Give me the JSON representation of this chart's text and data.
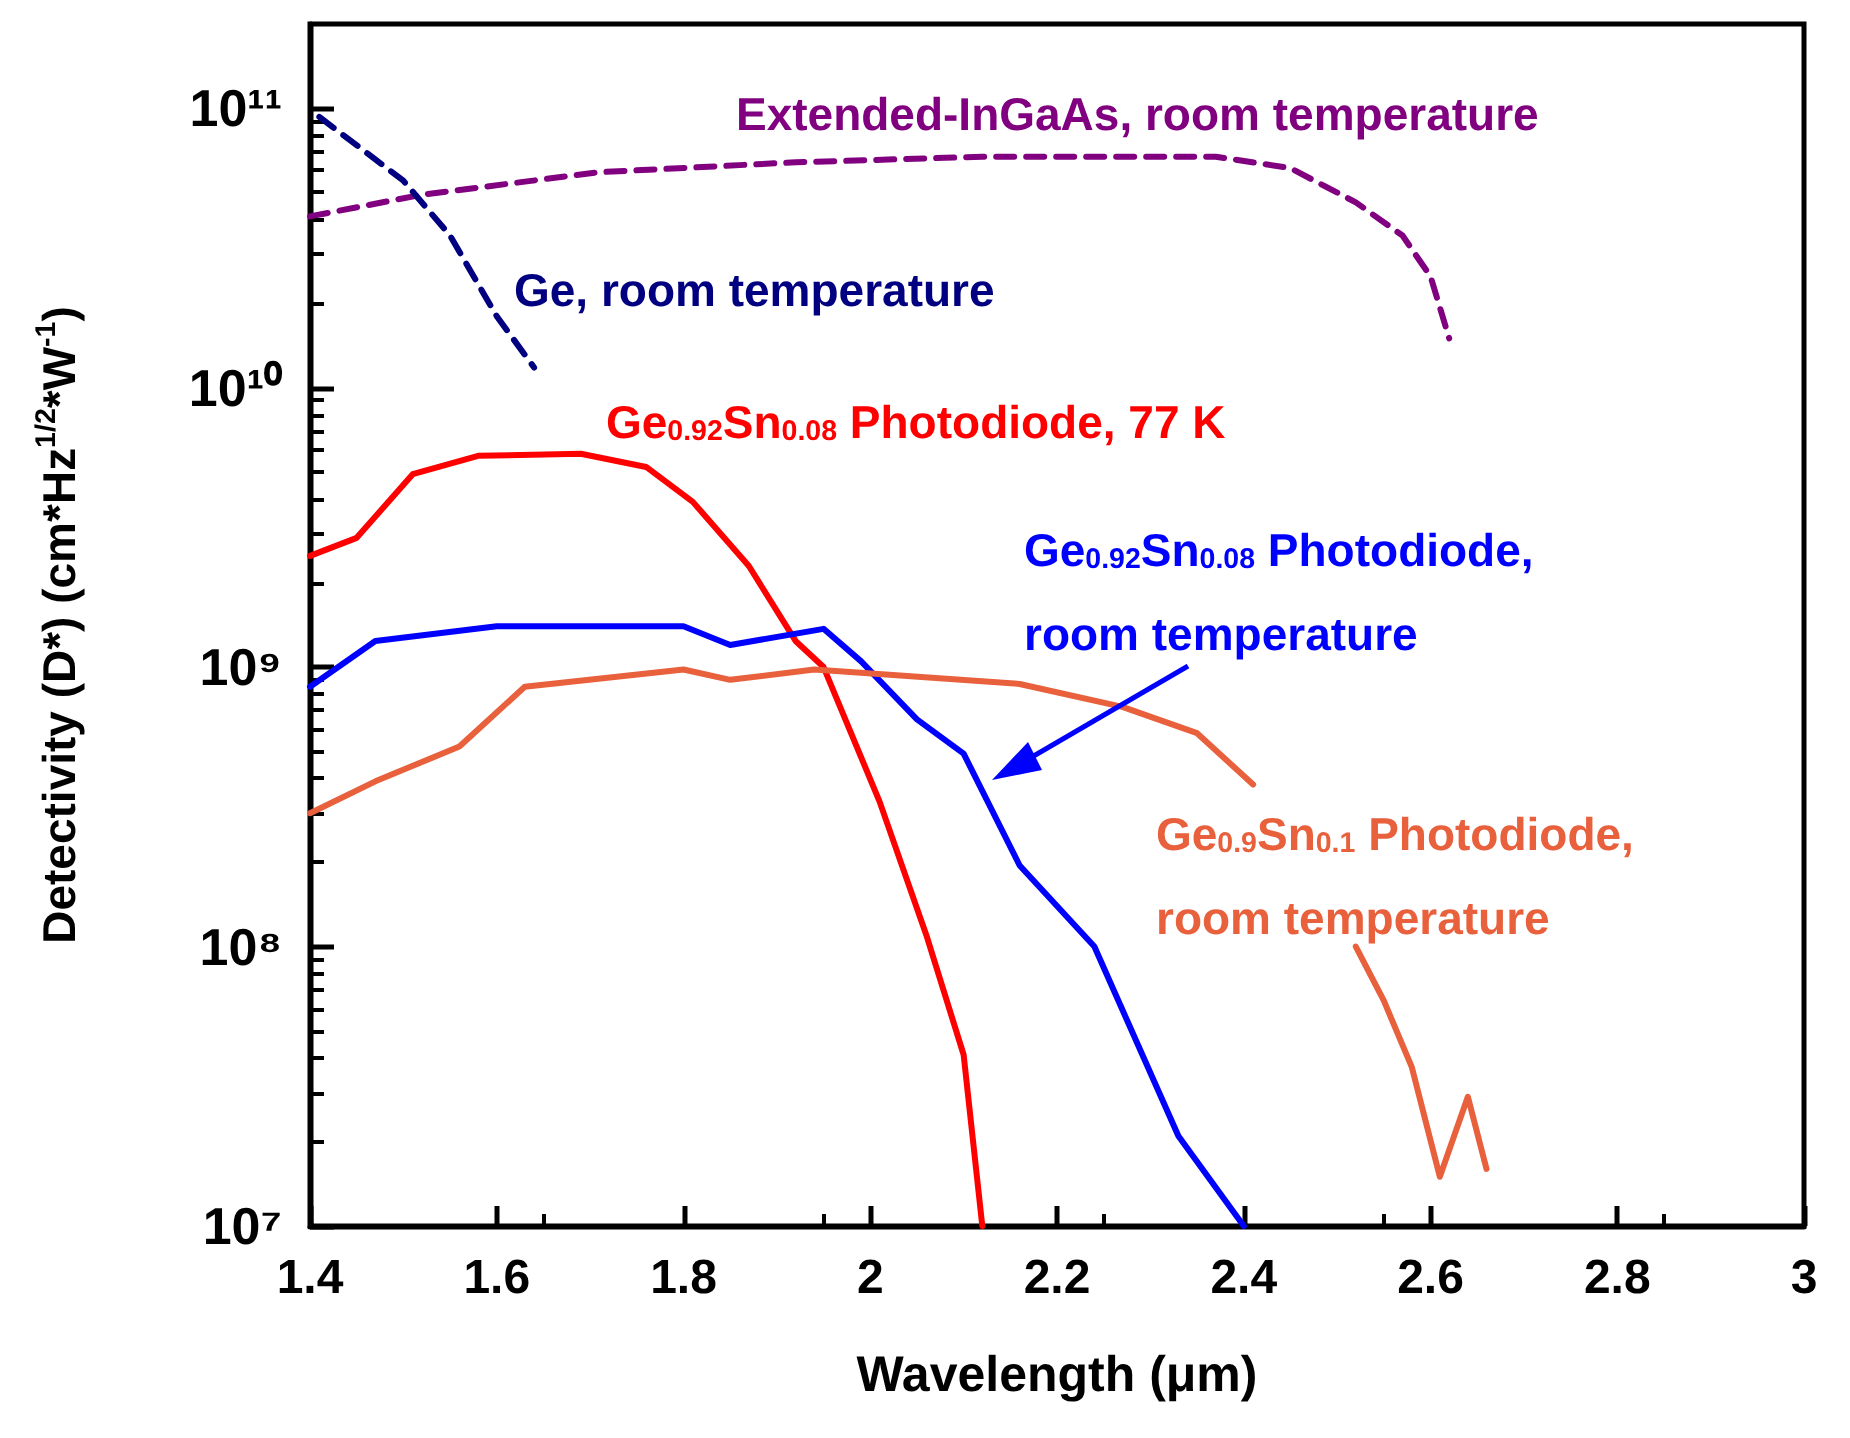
{
  "chart_data": {
    "type": "line",
    "xlabel": "Wavelength (μm)",
    "ylabel": "Detectivity (D*) (cm*Hz$^{1/2}$*W$^{-1}$)",
    "log": "y",
    "xlim": [
      1.4,
      3.0
    ],
    "xticks": [
      1.4,
      1.6,
      1.8,
      2.0,
      2.2,
      2.4,
      2.6,
      2.8,
      3.0
    ],
    "ylim": [
      10000000.0,
      200000000000.0
    ],
    "yticks": [
      {
        "value": 10000000.0,
        "label": "10⁷"
      },
      {
        "value": 100000000.0,
        "label": "10⁸"
      },
      {
        "value": 1000000000.0,
        "label": "10⁹"
      },
      {
        "value": 10000000000.0,
        "label": "10¹⁰"
      },
      {
        "value": 100000000000.0,
        "label": "10¹¹"
      }
    ],
    "series": [
      {
        "name": "Extended-InGaAs, room temperature",
        "color": "#800080",
        "line_style": "dashed",
        "x": [
          1.4,
          1.52,
          1.71,
          1.92,
          2.12,
          2.37,
          2.45,
          2.52,
          2.57,
          2.6,
          2.62
        ],
        "values": [
          41000000000.0,
          49000000000.0,
          59000000000.0,
          64000000000.0,
          67000000000.0,
          67000000000.0,
          61000000000.0,
          46000000000.0,
          35000000000.0,
          25000000000.0,
          15000000000.0
        ]
      },
      {
        "name": "Ge, room temperature",
        "color": "#000080",
        "line_style": "dashed",
        "x": [
          1.41,
          1.5,
          1.55,
          1.6,
          1.64
        ],
        "values": [
          93000000000.0,
          55000000000.0,
          35000000000.0,
          18000000000.0,
          11800000000.0
        ]
      },
      {
        "name": "Ge$_{0.92}$Sn$_{0.08}$ Photodiode, 77 K",
        "color": "#ff0000",
        "line_style": "solid",
        "x": [
          1.4,
          1.45,
          1.51,
          1.58,
          1.69,
          1.76,
          1.81,
          1.87,
          1.92,
          1.95,
          2.01,
          2.06,
          2.1,
          2.12
        ],
        "values": [
          2500000000.0,
          2900000000.0,
          4900000000.0,
          5700000000.0,
          5800000000.0,
          5200000000.0,
          3900000000.0,
          2300000000.0,
          1240000000.0,
          1000000000.0,
          330000000.0,
          110000000.0,
          41000000.0,
          10000000.0
        ]
      },
      {
        "name": "Ge$_{0.92}$Sn$_{0.08}$ Photodiode,\nroom temperature",
        "color": "#0000ff",
        "line_style": "solid",
        "x": [
          1.4,
          1.47,
          1.6,
          1.8,
          1.85,
          1.95,
          1.99,
          2.05,
          2.1,
          2.16,
          2.24,
          2.33,
          2.4
        ],
        "values": [
          850000000.0,
          1240000000.0,
          1400000000.0,
          1400000000.0,
          1200000000.0,
          1370000000.0,
          1050000000.0,
          650000000.0,
          490000000.0,
          195000000.0,
          100000000.0,
          21000000.0,
          10000000.0
        ]
      },
      {
        "name": "Ge$_{0.9}$Sn$_{0.1}$ Photodiode,\nroom temperature",
        "color": "#e8603c",
        "line_style": "solid",
        "x": [
          1.4,
          1.47,
          1.56,
          1.63,
          1.8,
          1.85,
          1.94,
          2.16,
          2.27,
          2.35,
          2.41,
          2.46,
          2.52,
          2.55,
          2.58,
          2.61,
          2.64,
          2.66
        ],
        "values": [
          300000000.0,
          390000000.0,
          520000000.0,
          850000000.0,
          980000000.0,
          900000000.0,
          980000000.0,
          870000000.0,
          720000000.0,
          580000000.0,
          380000000.0,
          null,
          100000000.0,
          64000000.0,
          37000000.0,
          15000000.0,
          29000000.0,
          16000000.0
        ]
      }
    ]
  }
}
